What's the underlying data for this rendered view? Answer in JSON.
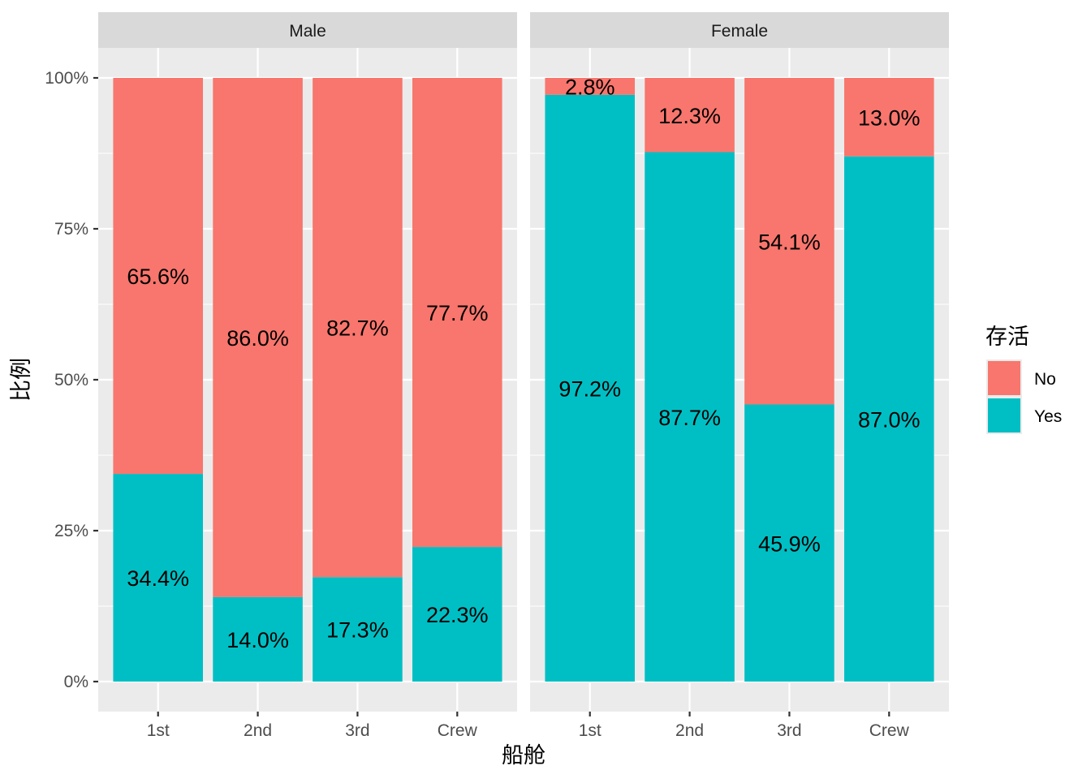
{
  "colors": {
    "No": "#F8766D",
    "Yes": "#00BFC4",
    "panel_bg": "#EBEBEB",
    "strip_bg": "#D9D9D9",
    "grid": "#FFFFFF"
  },
  "chart_data": {
    "type": "bar",
    "stacked": true,
    "facets": [
      "Male",
      "Female"
    ],
    "categories": [
      "1st",
      "2nd",
      "3rd",
      "Crew"
    ],
    "series": [
      {
        "name": "No",
        "values": {
          "Male": [
            0.656,
            0.86,
            0.827,
            0.777
          ],
          "Female": [
            0.028,
            0.123,
            0.541,
            0.13
          ]
        },
        "labels": {
          "Male": [
            "65.6%",
            "86.0%",
            "82.7%",
            "77.7%"
          ],
          "Female": [
            "2.8%",
            "12.3%",
            "54.1%",
            "13.0%"
          ]
        }
      },
      {
        "name": "Yes",
        "values": {
          "Male": [
            0.344,
            0.14,
            0.173,
            0.223
          ],
          "Female": [
            0.972,
            0.877,
            0.459,
            0.87
          ]
        },
        "labels": {
          "Male": [
            "34.4%",
            "14.0%",
            "17.3%",
            "22.3%"
          ],
          "Female": [
            "97.2%",
            "87.7%",
            "45.9%",
            "87.0%"
          ]
        }
      }
    ],
    "xlabel": "船舱",
    "ylabel": "比例",
    "ylim": [
      0,
      1
    ],
    "yticks": [
      0,
      0.25,
      0.5,
      0.75,
      1.0
    ],
    "ytick_labels": [
      "0%",
      "25%",
      "50%",
      "75%",
      "100%"
    ],
    "legend": {
      "title": "存活",
      "entries": [
        "No",
        "Yes"
      ],
      "position": "right"
    },
    "grid": true
  }
}
